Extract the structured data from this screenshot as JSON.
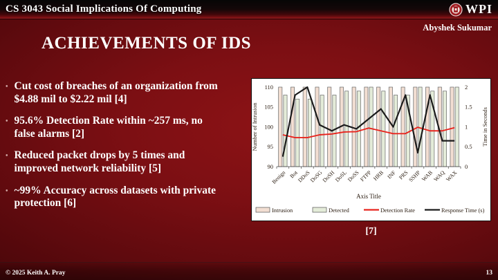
{
  "header": {
    "course_title": "CS 3043 Social Implications Of Computing",
    "logo_text": "WPI",
    "author": "Abyshek Sukumar"
  },
  "slide": {
    "title": "ACHIEVEMENTS OF IDS",
    "caption": "[7]",
    "footer_left": "© 2025 Keith A. Pray",
    "page_number": "13"
  },
  "bullets": [
    "Cut cost of breaches of an organization from $4.88 mil to $2.22 mil [4]",
    "95.6% Detection Rate within ~257 ms, no false alarms [2]",
    "Reduced packet drops by 5 times and improved network reliability [5]",
    "~99% Accuracy across datasets with private protection [6]"
  ],
  "colors": {
    "slide_background": "#7c0f13",
    "header_bar": "#0a0a0a",
    "bullet_dot": "#cfa6a4",
    "chart_background": "#ffffff",
    "chart_text": "#2e2014",
    "bar_intrusion_fill": "#f2ded2",
    "bar_detected_fill": "#e4ecd9",
    "bar_outline": "#666666",
    "detection_rate_line": "#e8241d",
    "response_time_line": "#1b1b1b"
  },
  "chart_data": {
    "type": "bar",
    "subtype": "combo bar + line, dual axis",
    "categories": [
      "Benign",
      "Bot",
      "DDoS",
      "DoSG",
      "DoSH",
      "DoSL",
      "DoSS",
      "FTPP",
      "HRB",
      "INF",
      "PRS",
      "SSHP",
      "WAB",
      "WAQ",
      "WAX"
    ],
    "series": [
      {
        "name": "Intrusion",
        "kind": "bar",
        "axis": "left",
        "color": "#f2ded2",
        "values": [
          110,
          110,
          110,
          110,
          110,
          110,
          110,
          110,
          110,
          110,
          110,
          110,
          110,
          110,
          110
        ]
      },
      {
        "name": "Detected",
        "kind": "bar",
        "axis": "left",
        "color": "#e4ecd9",
        "values": [
          108,
          107,
          107,
          108,
          108,
          109,
          109,
          110,
          109,
          108,
          108,
          110,
          109,
          109,
          110
        ]
      },
      {
        "name": "Detection Rate",
        "kind": "line",
        "axis": "left",
        "color": "#e8241d",
        "values": [
          98,
          97.3,
          97.3,
          98,
          98.2,
          98.7,
          98.8,
          99.7,
          99,
          98.3,
          98.3,
          99.9,
          99,
          99,
          99.8
        ]
      },
      {
        "name": "Response Time (s)",
        "kind": "line",
        "axis": "right",
        "color": "#1b1b1b",
        "values": [
          0.25,
          1.8,
          2,
          1.05,
          0.9,
          1.05,
          0.95,
          1.2,
          1.45,
          1,
          1.8,
          0.35,
          1.8,
          0.65,
          0.65
        ]
      }
    ],
    "left_axis": {
      "label": "Number of Intrusion",
      "min": 90,
      "max": 110,
      "ticks": [
        90,
        95,
        100,
        105,
        110
      ]
    },
    "right_axis": {
      "label": "Time in Seconds",
      "min": 0,
      "max": 2,
      "ticks": [
        0,
        0.5,
        1,
        1.5,
        2
      ]
    },
    "xlabel": "Axis Title",
    "grid": false,
    "legend_position": "bottom"
  }
}
